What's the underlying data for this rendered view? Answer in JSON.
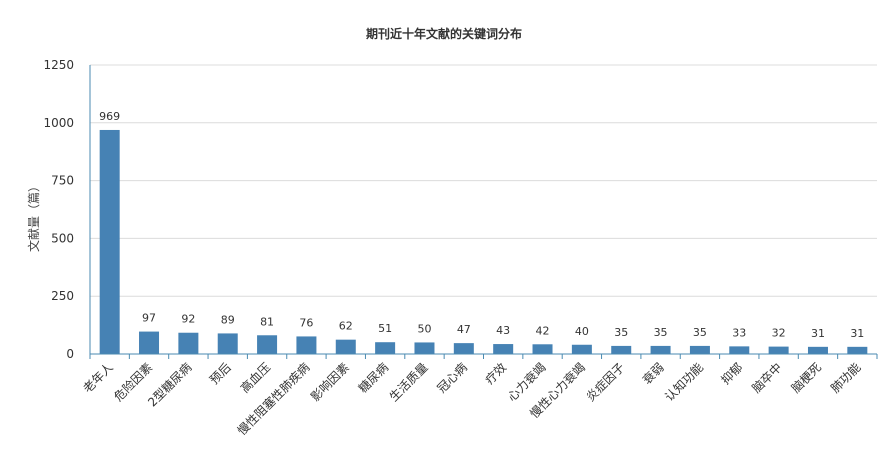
{
  "chart_data": {
    "type": "bar",
    "title": "期刊近十年文献的关键词分布",
    "xlabel": "",
    "ylabel": "文献量（篇）",
    "ylim": [
      0,
      1250
    ],
    "yticks": [
      "0",
      "250",
      "500",
      "750",
      "1000",
      "1250"
    ],
    "grid": true,
    "bar_color": "#4682b4",
    "categories": [
      "老年人",
      "危险因素",
      "2型糖尿病",
      "预后",
      "高血压",
      "慢性阻塞性肺疾病",
      "影响因素",
      "糖尿病",
      "生活质量",
      "冠心病",
      "疗效",
      "心力衰竭",
      "慢性心力衰竭",
      "炎症因子",
      "衰弱",
      "认知功能",
      "抑郁",
      "脑卒中",
      "脑梗死",
      "肺功能"
    ],
    "values": [
      969,
      97,
      92,
      89,
      81,
      76,
      62,
      51,
      50,
      47,
      43,
      42,
      40,
      35,
      35,
      35,
      33,
      32,
      31,
      31
    ]
  }
}
